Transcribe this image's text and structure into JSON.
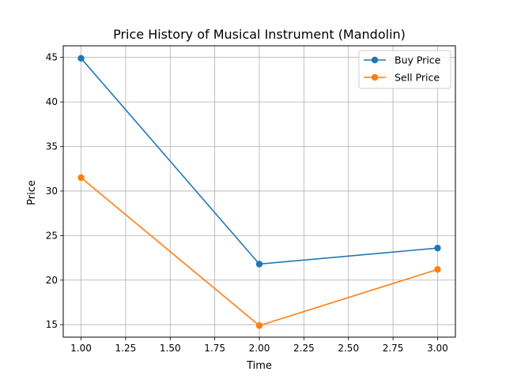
{
  "chart_data": {
    "type": "line",
    "title": "Price History of Musical Instrument (Mandolin)",
    "xlabel": "Time",
    "ylabel": "Price",
    "x": [
      1.0,
      2.0,
      3.0
    ],
    "xlim": [
      0.9,
      3.1
    ],
    "ylim": [
      13.6,
      46.3
    ],
    "xticks": [
      "1.00",
      "1.25",
      "1.50",
      "1.75",
      "2.00",
      "2.25",
      "2.50",
      "2.75",
      "3.00"
    ],
    "yticks": [
      "15",
      "20",
      "25",
      "30",
      "35",
      "40",
      "45"
    ],
    "grid": true,
    "legend_position": "top-right",
    "series": [
      {
        "name": "Buy Price",
        "color": "#1f77b4",
        "values": [
          44.9,
          21.8,
          23.6
        ]
      },
      {
        "name": "Sell Price",
        "color": "#ff7f0e",
        "values": [
          31.5,
          14.9,
          21.2
        ]
      }
    ]
  }
}
